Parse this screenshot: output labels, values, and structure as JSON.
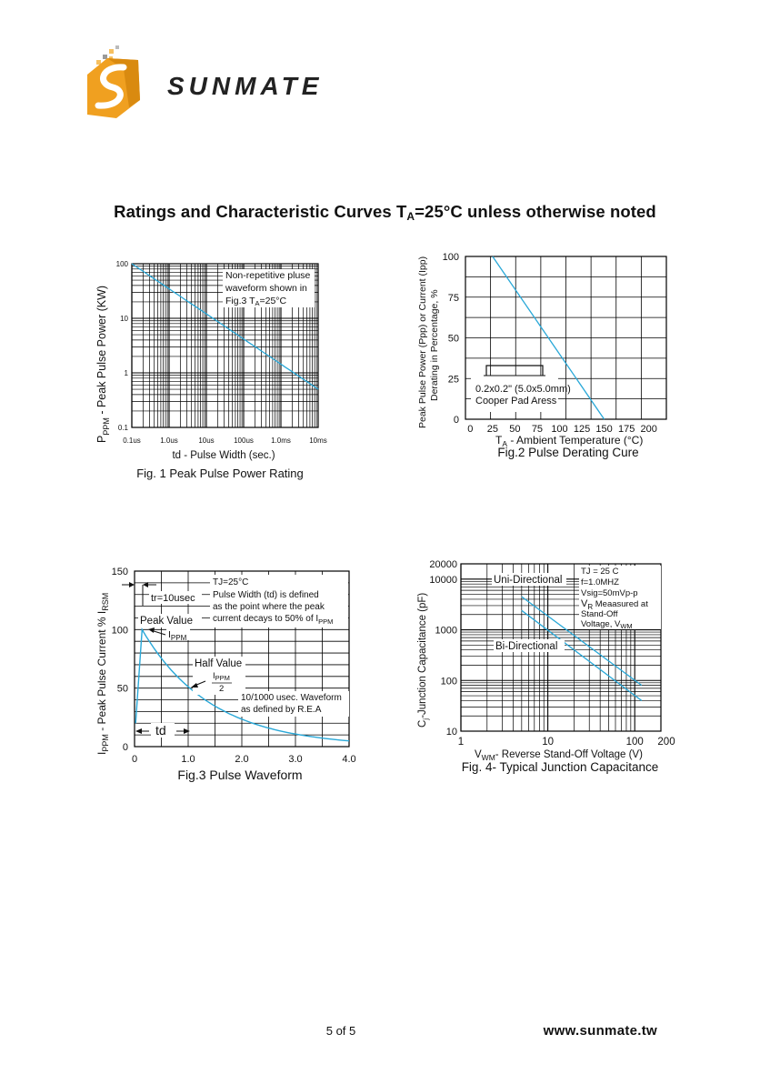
{
  "brand": {
    "logo_text": "SUNMATE",
    "accent": "#f0a020",
    "accent_dark": "#d98a10"
  },
  "title": {
    "main": "Ratings and Characteristic Curves T",
    "sub": "A",
    "rest": "=25°C unless otherwise noted"
  },
  "colors": {
    "curve": "#29a8d8",
    "grid": "#000000"
  },
  "fig1": {
    "caption": "Fig. 1 Peak Pulse Power Rating",
    "y_labels": [
      "100",
      "10",
      "1",
      "0.1"
    ],
    "x_labels": [
      "0.1us",
      "1.0us",
      "10us",
      "100us",
      "1.0ms",
      "10ms"
    ],
    "y_axis_main": "P",
    "y_axis_sub": "PPM",
    "y_axis_rest": " - Peak Pulse Power (KW)",
    "x_axis": "td - Pulse Width (sec.)",
    "note": [
      "Non-repetitive pluse",
      "waveform shown in",
      "Fig.3 T",
      "A",
      "=25°C"
    ]
  },
  "fig2": {
    "caption": "Fig.2 Pulse Derating Cure",
    "y_labels": [
      "100",
      "75",
      "50",
      "25",
      "0"
    ],
    "x_labels": [
      "0",
      "25",
      "50",
      "75",
      "100",
      "125",
      "150",
      "175",
      "200"
    ],
    "y_axis_1": "Peak Pulse Power (Ppp) or Current (Ipp)",
    "y_axis_2": "Derating in Percentage, %",
    "x_axis_main": "T",
    "x_axis_sub": "A",
    "x_axis_rest": " - Ambient Temperature (°C)",
    "pad_text": [
      "0.2x0.2\" (5.0x5.0mm)",
      "Cooper Pad Aress"
    ]
  },
  "fig3": {
    "caption": "Fig.3 Pulse Waveform",
    "y_labels": [
      "150",
      "100",
      "50",
      "0"
    ],
    "x_labels": [
      "0",
      "1.0",
      "2.0",
      "3.0",
      "4.0"
    ],
    "y_axis_main": "I",
    "y_axis_sub1": "PPM",
    "y_axis_mid": " - Peak Pulse Current % I",
    "y_axis_sub2": "RSM",
    "tr_label": "tr=10usec",
    "tj_label": "TJ=25°C",
    "note": [
      "Pulse Width (td) is defined",
      "as the point where the peak",
      "current decays to 50% of I"
    ],
    "note_sub": "PPM",
    "peak_value": "Peak Value",
    "ippm_label_main": "I",
    "ippm_label_sub": "PPM",
    "half_value": "Half Value",
    "half_frac_num_main": "I",
    "half_frac_num_sub": "PPM",
    "half_frac_den": "2",
    "waveform_note": [
      "10/1000 usec. Waveform",
      "as defined by R.E.A"
    ],
    "td_label": "td"
  },
  "fig4": {
    "caption": "Fig. 4- Typical Junction Capacitance",
    "y_labels": [
      "20000",
      "10000",
      "1000",
      "100",
      "10"
    ],
    "x_labels": [
      "1",
      "10",
      "100",
      "200"
    ],
    "y_axis_main": "C",
    "y_axis_sub": "j",
    "y_axis_rest": "-Junction Capacitance (pF)",
    "x_axis_main": "V",
    "x_axis_sub": "WM",
    "x_axis_rest": "- Reverse Stand-Off Voltage (V)",
    "uni_label": "Uni-Directional",
    "bi_label": "Bi-Directional",
    "note": [
      "TJ = 25 C",
      "f=1.0MHZ",
      "Vsig=50mVp-p"
    ],
    "note_vr_main": "V",
    "note_vr_sub": "R",
    "note_vr_rest": " Meaasured at",
    "note_more": "Stand-Off",
    "note_volt_main": "Voltage, V",
    "note_volt_sub": "WM"
  },
  "footer": {
    "page": "5 of 5",
    "url": "www.sunmate.tw"
  }
}
